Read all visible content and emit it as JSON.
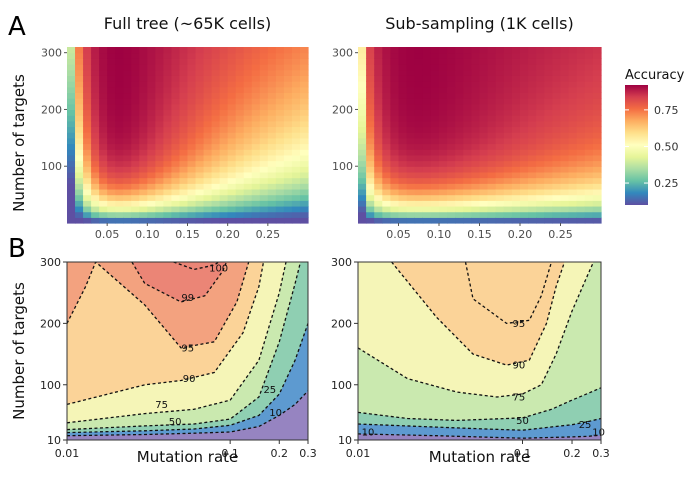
{
  "figure": {
    "panel_a_letter": "A",
    "panel_b_letter": "B"
  },
  "chart_data": [
    {
      "type": "heatmap",
      "panel": "A",
      "title": "Full tree (~65K cells)",
      "xlabel": "",
      "ylabel": "Number of targets",
      "xlim": [
        0.0,
        0.3
      ],
      "ylim": [
        0,
        310
      ],
      "x_ticks": [
        0.05,
        0.1,
        0.15,
        0.2,
        0.25
      ],
      "x_tick_labels": [
        "0.05",
        "0.10",
        "0.15",
        "0.20",
        "0.25"
      ],
      "y_ticks": [
        100,
        200,
        300
      ],
      "y_tick_labels": [
        "100",
        "200",
        "300"
      ],
      "model": {
        "peak_mutation_rate": 0.065,
        "width_factor": 1.0
      }
    },
    {
      "type": "heatmap",
      "panel": "A",
      "title": "Sub-sampling (1K cells)",
      "xlabel": "",
      "ylabel": "",
      "xlim": [
        0.0,
        0.3
      ],
      "ylim": [
        0,
        310
      ],
      "x_ticks": [
        0.05,
        0.1,
        0.15,
        0.2,
        0.25
      ],
      "x_tick_labels": [
        "0.05",
        "0.10",
        "0.15",
        "0.20",
        "0.25"
      ],
      "y_ticks": [
        100,
        200,
        300
      ],
      "y_tick_labels": [
        "100",
        "200",
        "300"
      ],
      "model": {
        "peak_mutation_rate": 0.075,
        "width_factor": 1.6
      }
    },
    {
      "type": "contour",
      "panel": "B",
      "title": "",
      "xlabel": "Mutation rate",
      "ylabel": "Number of targets",
      "x_scale": "log",
      "xlim": [
        0.01,
        0.3
      ],
      "ylim": [
        10,
        300
      ],
      "x_ticks": [
        0.01,
        0.1,
        0.2,
        0.3
      ],
      "x_tick_labels": [
        "0.01",
        "0.1",
        "0.2",
        "0.3"
      ],
      "y_ticks": [
        10,
        100,
        200,
        300
      ],
      "y_tick_labels": [
        "10",
        "100",
        "200",
        "300"
      ],
      "contour_levels": [
        10,
        25,
        50,
        75,
        90,
        95,
        99,
        100
      ],
      "labels": [
        {
          "text": "100",
          "x": 0.085,
          "y": 290
        },
        {
          "text": "99",
          "x": 0.055,
          "y": 242
        },
        {
          "text": "95",
          "x": 0.055,
          "y": 160
        },
        {
          "text": "90",
          "x": 0.056,
          "y": 110
        },
        {
          "text": "75",
          "x": 0.038,
          "y": 68
        },
        {
          "text": "50",
          "x": 0.046,
          "y": 40
        },
        {
          "text": "25",
          "x": 0.175,
          "y": 92
        },
        {
          "text": "10",
          "x": 0.19,
          "y": 55
        }
      ]
    },
    {
      "type": "contour",
      "panel": "B",
      "title": "",
      "xlabel": "Mutation rate",
      "ylabel": "",
      "x_scale": "log",
      "xlim": [
        0.01,
        0.3
      ],
      "ylim": [
        10,
        300
      ],
      "x_ticks": [
        0.01,
        0.1,
        0.2,
        0.3
      ],
      "x_tick_labels": [
        "0.01",
        "0.1",
        "0.2",
        "0.3"
      ],
      "y_ticks": [
        10,
        100,
        200,
        300
      ],
      "y_tick_labels": [
        "10",
        "100",
        "200",
        "300"
      ],
      "contour_levels": [
        10,
        25,
        50,
        75,
        90,
        95
      ],
      "labels": [
        {
          "text": "95",
          "x": 0.095,
          "y": 200
        },
        {
          "text": "90",
          "x": 0.095,
          "y": 132
        },
        {
          "text": "75",
          "x": 0.095,
          "y": 80
        },
        {
          "text": "50",
          "x": 0.1,
          "y": 42
        },
        {
          "text": "25",
          "x": 0.24,
          "y": 35
        },
        {
          "text": "10",
          "x": 0.29,
          "y": 23
        },
        {
          "text": "10",
          "x": 0.0115,
          "y": 23
        }
      ]
    }
  ],
  "legend": {
    "title": "Accuracy",
    "ticks": [
      0.25,
      0.5,
      0.75
    ],
    "tick_labels": [
      "0.25",
      "0.50",
      "0.75"
    ],
    "range": [
      0.1,
      0.92
    ],
    "colors": [
      "#5e4fa2",
      "#3288bd",
      "#66c2a5",
      "#abdda4",
      "#e6f598",
      "#ffffbf",
      "#fee08b",
      "#fdae61",
      "#f46d43",
      "#d53e4f",
      "#9e0142"
    ]
  }
}
